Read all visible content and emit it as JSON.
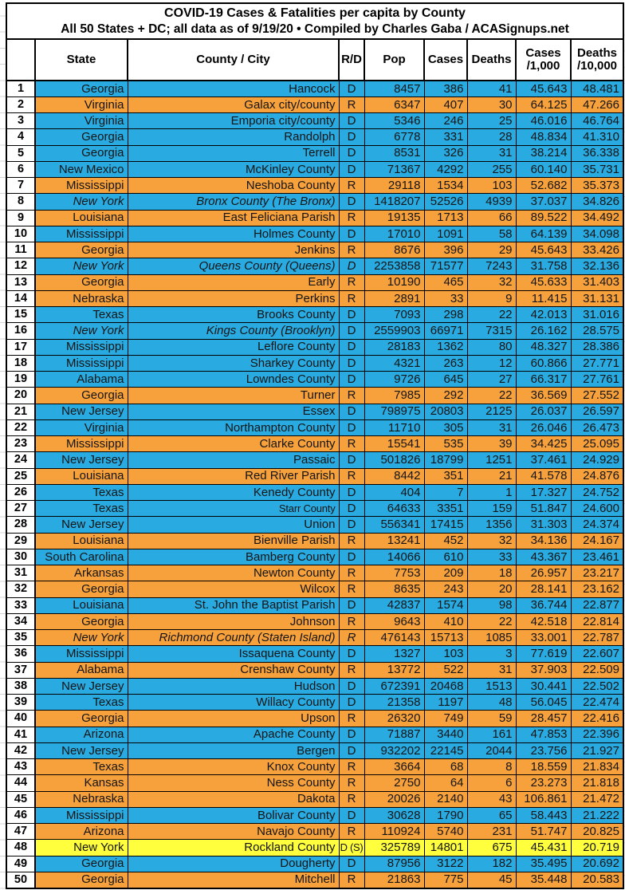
{
  "title": "COVID-19 Cases & Fatalities per capita by County",
  "subtitle": "All 50 States + DC; all data as of 9/19/20 • Compiled by Charles Gaba / ACASignups.net",
  "columns": {
    "rank": "",
    "state": "State",
    "county": "County / City",
    "rd": "R/D",
    "pop": "Pop",
    "cases": "Cases",
    "deaths": "Deaths",
    "cases_per_1000": [
      "Cases",
      "/1,000"
    ],
    "deaths_per_10000": [
      "Deaths",
      "/10,000"
    ]
  },
  "colors": {
    "dem_row": "#29ABE2",
    "rep_row": "#F7A13C",
    "special_row": "#FFFF3D",
    "grid_border": "#000000"
  },
  "rows": [
    {
      "rank": 1,
      "state": "Georgia",
      "county": "Hancock",
      "rd": "D",
      "pop": 8457,
      "cases": 386,
      "deaths": 41,
      "cases_per_1000": "45.643",
      "deaths_per_10000": "48.481",
      "party": "dem"
    },
    {
      "rank": 2,
      "state": "Virginia",
      "county": "Galax city/county",
      "rd": "R",
      "pop": 6347,
      "cases": 407,
      "deaths": 30,
      "cases_per_1000": "64.125",
      "deaths_per_10000": "47.266",
      "party": "rep"
    },
    {
      "rank": 3,
      "state": "Virginia",
      "county": "Emporia city/county",
      "rd": "D",
      "pop": 5346,
      "cases": 246,
      "deaths": 25,
      "cases_per_1000": "46.016",
      "deaths_per_10000": "46.764",
      "party": "dem"
    },
    {
      "rank": 4,
      "state": "Georgia",
      "county": "Randolph",
      "rd": "D",
      "pop": 6778,
      "cases": 331,
      "deaths": 28,
      "cases_per_1000": "48.834",
      "deaths_per_10000": "41.310",
      "party": "dem"
    },
    {
      "rank": 5,
      "state": "Georgia",
      "county": "Terrell",
      "rd": "D",
      "pop": 8531,
      "cases": 326,
      "deaths": 31,
      "cases_per_1000": "38.214",
      "deaths_per_10000": "36.338",
      "party": "dem"
    },
    {
      "rank": 6,
      "state": "New Mexico",
      "county": "McKinley County",
      "rd": "D",
      "pop": 71367,
      "cases": 4292,
      "deaths": 255,
      "cases_per_1000": "60.140",
      "deaths_per_10000": "35.731",
      "party": "dem"
    },
    {
      "rank": 7,
      "state": "Mississippi",
      "county": "Neshoba County",
      "rd": "R",
      "pop": 29118,
      "cases": 1534,
      "deaths": 103,
      "cases_per_1000": "52.682",
      "deaths_per_10000": "35.373",
      "party": "rep"
    },
    {
      "rank": 8,
      "state": "New York",
      "county": "Bronx County (The Bronx)",
      "rd": "D",
      "pop": 1418207,
      "cases": 52526,
      "deaths": 4939,
      "cases_per_1000": "37.037",
      "deaths_per_10000": "34.826",
      "party": "dem",
      "italic": true
    },
    {
      "rank": 9,
      "state": "Louisiana",
      "county": "East Feliciana Parish",
      "rd": "R",
      "pop": 19135,
      "cases": 1713,
      "deaths": 66,
      "cases_per_1000": "89.522",
      "deaths_per_10000": "34.492",
      "party": "rep"
    },
    {
      "rank": 10,
      "state": "Mississippi",
      "county": "Holmes County",
      "rd": "D",
      "pop": 17010,
      "cases": 1091,
      "deaths": 58,
      "cases_per_1000": "64.139",
      "deaths_per_10000": "34.098",
      "party": "dem"
    },
    {
      "rank": 11,
      "state": "Georgia",
      "county": "Jenkins",
      "rd": "R",
      "pop": 8676,
      "cases": 396,
      "deaths": 29,
      "cases_per_1000": "45.643",
      "deaths_per_10000": "33.426",
      "party": "rep"
    },
    {
      "rank": 12,
      "state": "New York",
      "county": "Queens County (Queens)",
      "rd": "D",
      "pop": 2253858,
      "cases": 71577,
      "deaths": 7243,
      "cases_per_1000": "31.758",
      "deaths_per_10000": "32.136",
      "party": "dem",
      "italic": true,
      "rd_italic": true
    },
    {
      "rank": 13,
      "state": "Georgia",
      "county": "Early",
      "rd": "R",
      "pop": 10190,
      "cases": 465,
      "deaths": 32,
      "cases_per_1000": "45.633",
      "deaths_per_10000": "31.403",
      "party": "rep"
    },
    {
      "rank": 14,
      "state": "Nebraska",
      "county": "Perkins",
      "rd": "R",
      "pop": 2891,
      "cases": 33,
      "deaths": 9,
      "cases_per_1000": "11.415",
      "deaths_per_10000": "31.131",
      "party": "rep"
    },
    {
      "rank": 15,
      "state": "Texas",
      "county": "Brooks County",
      "rd": "D",
      "pop": 7093,
      "cases": 298,
      "deaths": 22,
      "cases_per_1000": "42.013",
      "deaths_per_10000": "31.016",
      "party": "dem"
    },
    {
      "rank": 16,
      "state": "New York",
      "county": "Kings County (Brooklyn)",
      "rd": "D",
      "pop": 2559903,
      "cases": 66971,
      "deaths": 7315,
      "cases_per_1000": "26.162",
      "deaths_per_10000": "28.575",
      "party": "dem",
      "italic": true
    },
    {
      "rank": 17,
      "state": "Mississippi",
      "county": "Leflore County",
      "rd": "D",
      "pop": 28183,
      "cases": 1362,
      "deaths": 80,
      "cases_per_1000": "48.327",
      "deaths_per_10000": "28.386",
      "party": "dem"
    },
    {
      "rank": 18,
      "state": "Mississippi",
      "county": "Sharkey County",
      "rd": "D",
      "pop": 4321,
      "cases": 263,
      "deaths": 12,
      "cases_per_1000": "60.866",
      "deaths_per_10000": "27.771",
      "party": "dem"
    },
    {
      "rank": 19,
      "state": "Alabama",
      "county": "Lowndes County",
      "rd": "D",
      "pop": 9726,
      "cases": 645,
      "deaths": 27,
      "cases_per_1000": "66.317",
      "deaths_per_10000": "27.761",
      "party": "dem"
    },
    {
      "rank": 20,
      "state": "Georgia",
      "county": "Turner",
      "rd": "R",
      "pop": 7985,
      "cases": 292,
      "deaths": 22,
      "cases_per_1000": "36.569",
      "deaths_per_10000": "27.552",
      "party": "rep"
    },
    {
      "rank": 21,
      "state": "New Jersey",
      "county": "Essex",
      "rd": "D",
      "pop": 798975,
      "cases": 20803,
      "deaths": 2125,
      "cases_per_1000": "26.037",
      "deaths_per_10000": "26.597",
      "party": "dem"
    },
    {
      "rank": 22,
      "state": "Virginia",
      "county": "Northampton County",
      "rd": "D",
      "pop": 11710,
      "cases": 305,
      "deaths": 31,
      "cases_per_1000": "26.046",
      "deaths_per_10000": "26.473",
      "party": "dem"
    },
    {
      "rank": 23,
      "state": "Mississippi",
      "county": "Clarke County",
      "rd": "R",
      "pop": 15541,
      "cases": 535,
      "deaths": 39,
      "cases_per_1000": "34.425",
      "deaths_per_10000": "25.095",
      "party": "rep"
    },
    {
      "rank": 24,
      "state": "New Jersey",
      "county": "Passaic",
      "rd": "D",
      "pop": 501826,
      "cases": 18799,
      "deaths": 1251,
      "cases_per_1000": "37.461",
      "deaths_per_10000": "24.929",
      "party": "dem"
    },
    {
      "rank": 25,
      "state": "Louisiana",
      "county": "Red River Parish",
      "rd": "R",
      "pop": 8442,
      "cases": 351,
      "deaths": 21,
      "cases_per_1000": "41.578",
      "deaths_per_10000": "24.876",
      "party": "rep"
    },
    {
      "rank": 26,
      "state": "Texas",
      "county": "Kenedy County",
      "rd": "D",
      "pop": 404,
      "cases": 7,
      "deaths": 1,
      "cases_per_1000": "17.327",
      "deaths_per_10000": "24.752",
      "party": "dem"
    },
    {
      "rank": 27,
      "state": "Texas",
      "county": "Starr County",
      "rd": "D",
      "pop": 64633,
      "cases": 3351,
      "deaths": 159,
      "cases_per_1000": "51.847",
      "deaths_per_10000": "24.600",
      "party": "dem",
      "county_narrow": true
    },
    {
      "rank": 28,
      "state": "New Jersey",
      "county": "Union",
      "rd": "D",
      "pop": 556341,
      "cases": 17415,
      "deaths": 1356,
      "cases_per_1000": "31.303",
      "deaths_per_10000": "24.374",
      "party": "dem"
    },
    {
      "rank": 29,
      "state": "Louisiana",
      "county": "Bienville Parish",
      "rd": "R",
      "pop": 13241,
      "cases": 452,
      "deaths": 32,
      "cases_per_1000": "34.136",
      "deaths_per_10000": "24.167",
      "party": "rep"
    },
    {
      "rank": 30,
      "state": "South Carolina",
      "county": "Bamberg County",
      "rd": "D",
      "pop": 14066,
      "cases": 610,
      "deaths": 33,
      "cases_per_1000": "43.367",
      "deaths_per_10000": "23.461",
      "party": "dem"
    },
    {
      "rank": 31,
      "state": "Arkansas",
      "county": "Newton County",
      "rd": "R",
      "pop": 7753,
      "cases": 209,
      "deaths": 18,
      "cases_per_1000": "26.957",
      "deaths_per_10000": "23.217",
      "party": "rep"
    },
    {
      "rank": 32,
      "state": "Georgia",
      "county": "Wilcox",
      "rd": "R",
      "pop": 8635,
      "cases": 243,
      "deaths": 20,
      "cases_per_1000": "28.141",
      "deaths_per_10000": "23.162",
      "party": "rep"
    },
    {
      "rank": 33,
      "state": "Louisiana",
      "county": "St. John the Baptist Parish",
      "rd": "D",
      "pop": 42837,
      "cases": 1574,
      "deaths": 98,
      "cases_per_1000": "36.744",
      "deaths_per_10000": "22.877",
      "party": "dem"
    },
    {
      "rank": 34,
      "state": "Georgia",
      "county": "Johnson",
      "rd": "R",
      "pop": 9643,
      "cases": 410,
      "deaths": 22,
      "cases_per_1000": "42.518",
      "deaths_per_10000": "22.814",
      "party": "rep"
    },
    {
      "rank": 35,
      "state": "New York",
      "county": "Richmond County (Staten Island)",
      "rd": "R",
      "pop": 476143,
      "cases": 15713,
      "deaths": 1085,
      "cases_per_1000": "33.001",
      "deaths_per_10000": "22.787",
      "party": "rep",
      "italic": true,
      "rd_italic": true
    },
    {
      "rank": 36,
      "state": "Mississippi",
      "county": "Issaquena County",
      "rd": "D",
      "pop": 1327,
      "cases": 103,
      "deaths": 3,
      "cases_per_1000": "77.619",
      "deaths_per_10000": "22.607",
      "party": "dem"
    },
    {
      "rank": 37,
      "state": "Alabama",
      "county": "Crenshaw County",
      "rd": "R",
      "pop": 13772,
      "cases": 522,
      "deaths": 31,
      "cases_per_1000": "37.903",
      "deaths_per_10000": "22.509",
      "party": "rep"
    },
    {
      "rank": 38,
      "state": "New Jersey",
      "county": "Hudson",
      "rd": "D",
      "pop": 672391,
      "cases": 20468,
      "deaths": 1513,
      "cases_per_1000": "30.441",
      "deaths_per_10000": "22.502",
      "party": "dem"
    },
    {
      "rank": 39,
      "state": "Texas",
      "county": "Willacy County",
      "rd": "D",
      "pop": 21358,
      "cases": 1197,
      "deaths": 48,
      "cases_per_1000": "56.045",
      "deaths_per_10000": "22.474",
      "party": "dem"
    },
    {
      "rank": 40,
      "state": "Georgia",
      "county": "Upson",
      "rd": "R",
      "pop": 26320,
      "cases": 749,
      "deaths": 59,
      "cases_per_1000": "28.457",
      "deaths_per_10000": "22.416",
      "party": "rep"
    },
    {
      "rank": 41,
      "state": "Arizona",
      "county": "Apache County",
      "rd": "D",
      "pop": 71887,
      "cases": 3440,
      "deaths": 161,
      "cases_per_1000": "47.853",
      "deaths_per_10000": "22.396",
      "party": "dem"
    },
    {
      "rank": 42,
      "state": "New Jersey",
      "county": "Bergen",
      "rd": "D",
      "pop": 932202,
      "cases": 22145,
      "deaths": 2044,
      "cases_per_1000": "23.756",
      "deaths_per_10000": "21.927",
      "party": "dem"
    },
    {
      "rank": 43,
      "state": "Texas",
      "county": "Knox County",
      "rd": "R",
      "pop": 3664,
      "cases": 68,
      "deaths": 8,
      "cases_per_1000": "18.559",
      "deaths_per_10000": "21.834",
      "party": "rep"
    },
    {
      "rank": 44,
      "state": "Kansas",
      "county": "Ness County",
      "rd": "R",
      "pop": 2750,
      "cases": 64,
      "deaths": 6,
      "cases_per_1000": "23.273",
      "deaths_per_10000": "21.818",
      "party": "rep"
    },
    {
      "rank": 45,
      "state": "Nebraska",
      "county": "Dakota",
      "rd": "R",
      "pop": 20026,
      "cases": 2140,
      "deaths": 43,
      "cases_per_1000": "106.861",
      "deaths_per_10000": "21.472",
      "party": "rep"
    },
    {
      "rank": 46,
      "state": "Mississippi",
      "county": "Bolivar County",
      "rd": "D",
      "pop": 30628,
      "cases": 1790,
      "deaths": 65,
      "cases_per_1000": "58.443",
      "deaths_per_10000": "21.222",
      "party": "dem"
    },
    {
      "rank": 47,
      "state": "Arizona",
      "county": "Navajo County",
      "rd": "R",
      "pop": 110924,
      "cases": 5740,
      "deaths": 231,
      "cases_per_1000": "51.747",
      "deaths_per_10000": "20.825",
      "party": "rep"
    },
    {
      "rank": 48,
      "state": "New York",
      "county": "Rockland County",
      "rd": "D (S)",
      "pop": 325789,
      "cases": 14801,
      "deaths": 675,
      "cases_per_1000": "45.431",
      "deaths_per_10000": "20.719",
      "party": "special"
    },
    {
      "rank": 49,
      "state": "Georgia",
      "county": "Dougherty",
      "rd": "D",
      "pop": 87956,
      "cases": 3122,
      "deaths": 182,
      "cases_per_1000": "35.495",
      "deaths_per_10000": "20.692",
      "party": "dem"
    },
    {
      "rank": 50,
      "state": "Georgia",
      "county": "Mitchell",
      "rd": "R",
      "pop": 21863,
      "cases": 775,
      "deaths": 45,
      "cases_per_1000": "35.448",
      "deaths_per_10000": "20.583",
      "party": "rep"
    }
  ]
}
